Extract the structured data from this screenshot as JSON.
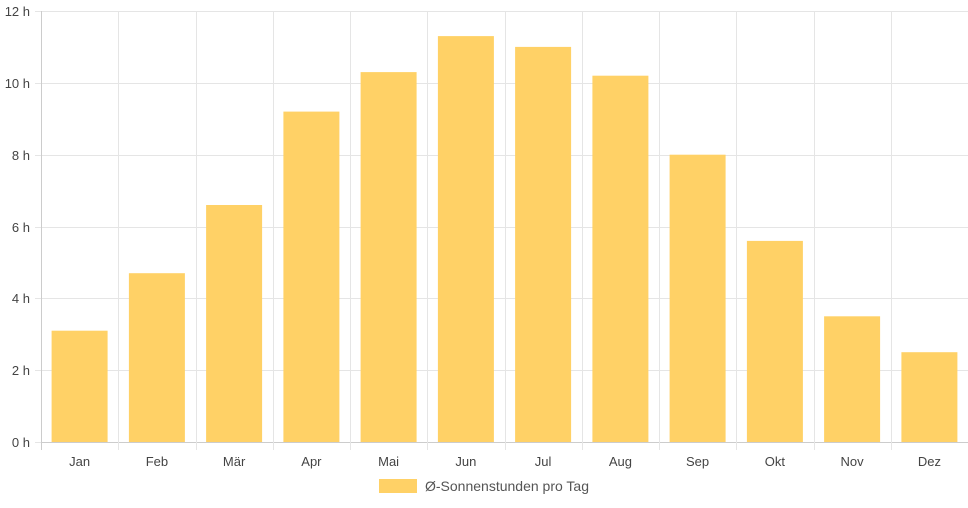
{
  "chart_data": {
    "type": "bar",
    "categories": [
      "Jan",
      "Feb",
      "Mär",
      "Apr",
      "Mai",
      "Jun",
      "Jul",
      "Aug",
      "Sep",
      "Okt",
      "Nov",
      "Dez"
    ],
    "series": [
      {
        "name": "Ø-Sonnenstunden pro Tag",
        "values": [
          3.1,
          4.7,
          6.6,
          9.2,
          10.3,
          11.3,
          11.0,
          10.2,
          8.0,
          5.6,
          3.5,
          2.5
        ]
      }
    ],
    "ylim": [
      0,
      12
    ],
    "yticks": [
      0,
      2,
      4,
      6,
      8,
      10,
      12
    ],
    "ytick_labels": [
      "0 h",
      "2 h",
      "4 h",
      "6 h",
      "8 h",
      "10 h",
      "12 h"
    ],
    "grid": true,
    "legend_position": "bottom",
    "colors": {
      "bar": "#ffd166",
      "grid": "#e5e5e5",
      "axis": "#cccccc",
      "text": "#444444"
    }
  }
}
